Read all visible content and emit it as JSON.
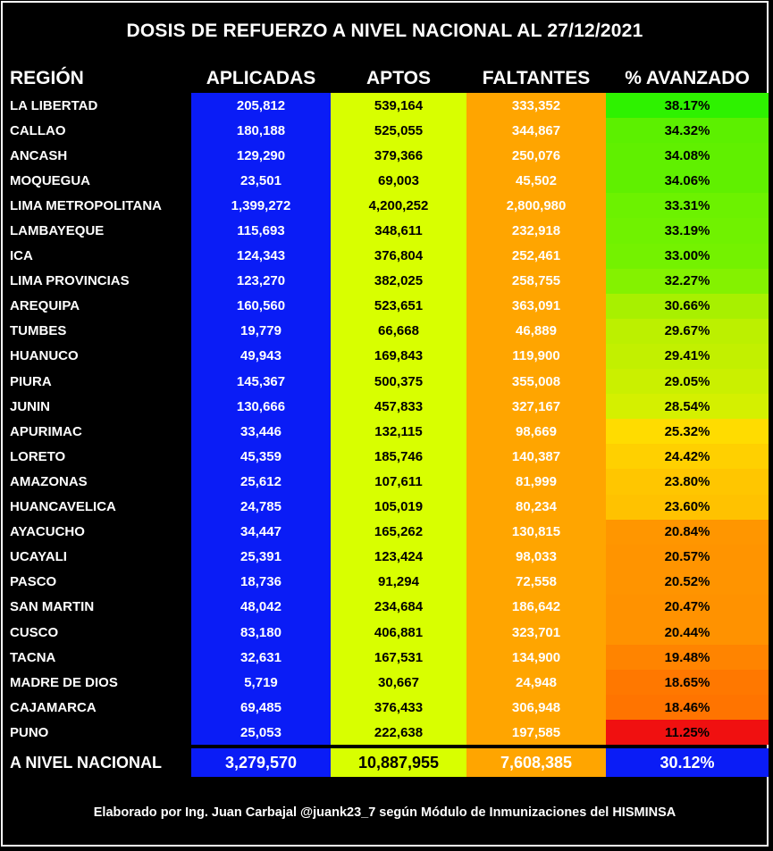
{
  "title": "DOSIS DE REFUERZO A NIVEL NACIONAL AL 27/12/2021",
  "headers": {
    "region": "REGIÓN",
    "aplicadas": "APLICADAS",
    "aptos": "APTOS",
    "faltantes": "FALTANTES",
    "avanzado": "% AVANZADO"
  },
  "rows": [
    {
      "region": "LA LIBERTAD",
      "aplicadas": "205,812",
      "aptos": "539,164",
      "faltantes": "333,352",
      "avanzado": "38.17%",
      "color": "#2ef200"
    },
    {
      "region": "CALLAO",
      "aplicadas": "180,188",
      "aptos": "525,055",
      "faltantes": "344,867",
      "avanzado": "34.32%",
      "color": "#5cf000"
    },
    {
      "region": "ANCASH",
      "aplicadas": "129,290",
      "aptos": "379,366",
      "faltantes": "250,076",
      "avanzado": "34.08%",
      "color": "#60f000"
    },
    {
      "region": "MOQUEGUA",
      "aplicadas": "23,501",
      "aptos": "69,003",
      "faltantes": "45,502",
      "avanzado": "34.06%",
      "color": "#60f000"
    },
    {
      "region": "LIMA METROPOLITANA",
      "aplicadas": "1,399,272",
      "aptos": "4,200,252",
      "faltantes": "2,800,980",
      "avanzado": "33.31%",
      "color": "#6cf200"
    },
    {
      "region": "LAMBAYEQUE",
      "aplicadas": "115,693",
      "aptos": "348,611",
      "faltantes": "232,918",
      "avanzado": "33.19%",
      "color": "#70f200"
    },
    {
      "region": "ICA",
      "aplicadas": "124,343",
      "aptos": "376,804",
      "faltantes": "252,461",
      "avanzado": "33.00%",
      "color": "#74f200"
    },
    {
      "region": "LIMA PROVINCIAS",
      "aplicadas": "123,270",
      "aptos": "382,025",
      "faltantes": "258,755",
      "avanzado": "32.27%",
      "color": "#84f200"
    },
    {
      "region": "AREQUIPA",
      "aplicadas": "160,560",
      "aptos": "523,651",
      "faltantes": "363,091",
      "avanzado": "30.66%",
      "color": "#a8f000"
    },
    {
      "region": "TUMBES",
      "aplicadas": "19,779",
      "aptos": "66,668",
      "faltantes": "46,889",
      "avanzado": "29.67%",
      "color": "#bcf000"
    },
    {
      "region": "HUANUCO",
      "aplicadas": "49,943",
      "aptos": "169,843",
      "faltantes": "119,900",
      "avanzado": "29.41%",
      "color": "#c2f000"
    },
    {
      "region": "PIURA",
      "aplicadas": "145,367",
      "aptos": "500,375",
      "faltantes": "355,008",
      "avanzado": "29.05%",
      "color": "#caf000"
    },
    {
      "region": "JUNIN",
      "aplicadas": "130,666",
      "aptos": "457,833",
      "faltantes": "327,167",
      "avanzado": "28.54%",
      "color": "#d4f000"
    },
    {
      "region": "APURIMAC",
      "aplicadas": "33,446",
      "aptos": "132,115",
      "faltantes": "98,669",
      "avanzado": "25.32%",
      "color": "#ffdc00"
    },
    {
      "region": "LORETO",
      "aplicadas": "45,359",
      "aptos": "185,746",
      "faltantes": "140,387",
      "avanzado": "24.42%",
      "color": "#ffd000"
    },
    {
      "region": "AMAZONAS",
      "aplicadas": "25,612",
      "aptos": "107,611",
      "faltantes": "81,999",
      "avanzado": "23.80%",
      "color": "#ffc600"
    },
    {
      "region": "HUANCAVELICA",
      "aplicadas": "24,785",
      "aptos": "105,019",
      "faltantes": "80,234",
      "avanzado": "23.60%",
      "color": "#ffc200"
    },
    {
      "region": "AYACUCHO",
      "aplicadas": "34,447",
      "aptos": "165,262",
      "faltantes": "130,815",
      "avanzado": "20.84%",
      "color": "#ff9600"
    },
    {
      "region": "UCAYALI",
      "aplicadas": "25,391",
      "aptos": "123,424",
      "faltantes": "98,033",
      "avanzado": "20.57%",
      "color": "#ff9400"
    },
    {
      "region": "PASCO",
      "aplicadas": "18,736",
      "aptos": "91,294",
      "faltantes": "72,558",
      "avanzado": "20.52%",
      "color": "#ff9400"
    },
    {
      "region": "SAN MARTIN",
      "aplicadas": "48,042",
      "aptos": "234,684",
      "faltantes": "186,642",
      "avanzado": "20.47%",
      "color": "#ff9200"
    },
    {
      "region": "CUSCO",
      "aplicadas": "83,180",
      "aptos": "406,881",
      "faltantes": "323,701",
      "avanzado": "20.44%",
      "color": "#ff9200"
    },
    {
      "region": "TACNA",
      "aplicadas": "32,631",
      "aptos": "167,531",
      "faltantes": "134,900",
      "avanzado": "19.48%",
      "color": "#ff8400"
    },
    {
      "region": "MADRE DE DIOS",
      "aplicadas": "5,719",
      "aptos": "30,667",
      "faltantes": "24,948",
      "avanzado": "18.65%",
      "color": "#ff7800"
    },
    {
      "region": "CAJAMARCA",
      "aplicadas": "69,485",
      "aptos": "376,433",
      "faltantes": "306,948",
      "avanzado": "18.46%",
      "color": "#ff7400"
    },
    {
      "region": "PUNO",
      "aplicadas": "25,053",
      "aptos": "222,638",
      "faltantes": "197,585",
      "avanzado": "11.25%",
      "color": "#f01010"
    }
  ],
  "total": {
    "region": "A NIVEL NACIONAL",
    "aplicadas": "3,279,570",
    "aptos": "10,887,955",
    "faltantes": "7,608,385",
    "avanzado": "30.12%"
  },
  "footer": "Elaborado por Ing. Juan Carbajal @juank23_7 según Módulo de Inmunizaciones del HISMINSA"
}
